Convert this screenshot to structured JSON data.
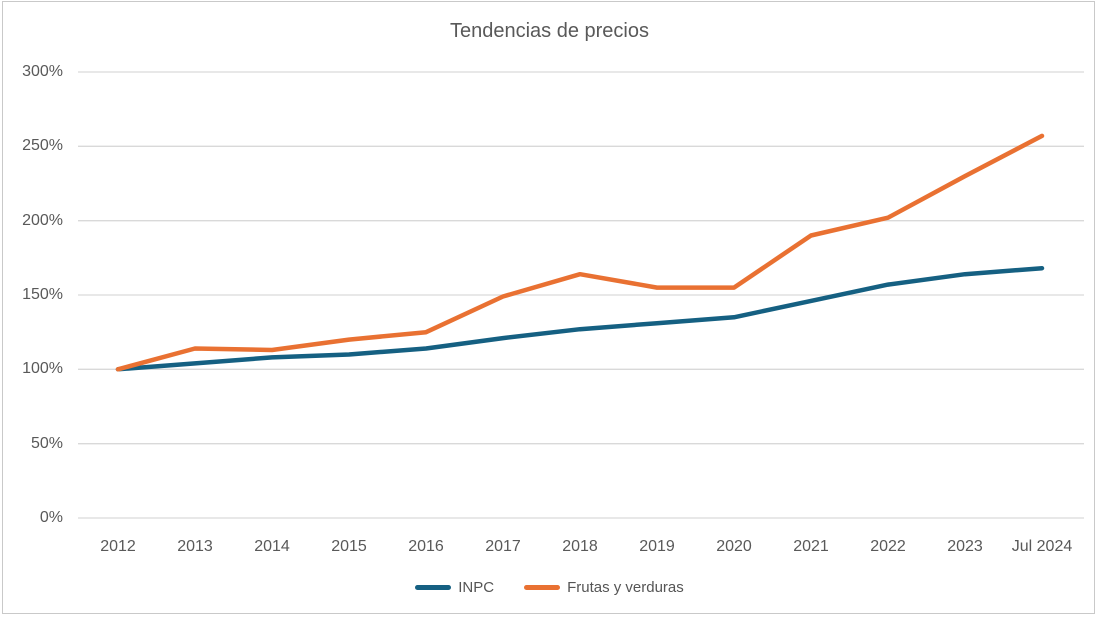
{
  "title": "Tendencias de precios",
  "colors": {
    "inpc_line": "#156082",
    "frutas_line": "#E97132",
    "gridline": "#D9D9D9",
    "frame_border": "#C9C9C9",
    "title_text": "#595959",
    "axis_text": "#595959",
    "legend_text": "#555555"
  },
  "legend": {
    "items": [
      "INPC",
      "Frutas y verduras"
    ]
  },
  "chart_data": {
    "type": "line",
    "title": "Tendencias de precios",
    "xlabel": "",
    "ylabel": "",
    "categories": [
      "2012",
      "2013",
      "2014",
      "2015",
      "2016",
      "2017",
      "2018",
      "2019",
      "2020",
      "2021",
      "2022",
      "2023",
      "Jul 2024"
    ],
    "series": [
      {
        "name": "INPC",
        "color": "#156082",
        "values": [
          100,
          104,
          108,
          110,
          114,
          121,
          127,
          131,
          135,
          146,
          157,
          164,
          168
        ]
      },
      {
        "name": "Frutas y verduras",
        "color": "#E97132",
        "values": [
          100,
          114,
          113,
          120,
          125,
          149,
          164,
          155,
          155,
          190,
          202,
          230,
          257
        ]
      }
    ],
    "ylim": [
      0,
      300
    ],
    "y_tick_step": 50,
    "y_ticks": [
      "0%",
      "50%",
      "100%",
      "150%",
      "200%",
      "250%",
      "300%"
    ],
    "grid": true,
    "legend_position": "bottom"
  }
}
